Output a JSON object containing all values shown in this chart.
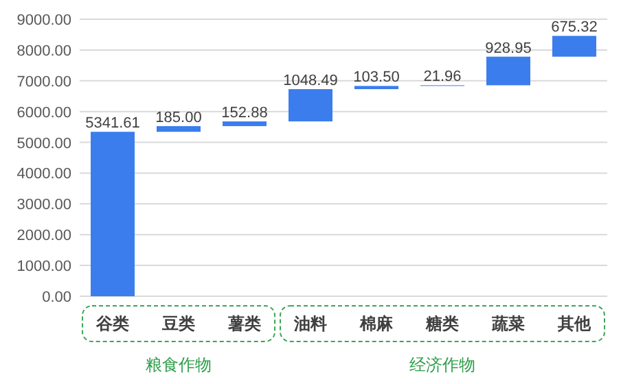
{
  "chart_data": {
    "type": "bar",
    "categories": [
      "谷类",
      "豆类",
      "薯类",
      "油料",
      "棉麻",
      "糖类",
      "蔬菜",
      "其他"
    ],
    "values": [
      5341.61,
      185.0,
      152.88,
      1048.49,
      103.5,
      21.96,
      928.95,
      675.32
    ],
    "base": [
      0,
      5341.61,
      5526.61,
      5679.49,
      6727.98,
      6831.48,
      6853.44,
      7782.39
    ],
    "value_labels": [
      "5341.61",
      "185.00",
      "152.88",
      "1048.49",
      "103.50",
      "21.96",
      "928.95",
      "675.32"
    ],
    "color": "#3b7ded",
    "ylim": [
      0,
      9000
    ],
    "yticks": [
      {
        "value": 0,
        "label": "0.00"
      },
      {
        "value": 1000,
        "label": "1000.00"
      },
      {
        "value": 2000,
        "label": "2000.00"
      },
      {
        "value": 3000,
        "label": "3000.00"
      },
      {
        "value": 4000,
        "label": "4000.00"
      },
      {
        "value": 5000,
        "label": "5000.00"
      },
      {
        "value": 6000,
        "label": "6000.00"
      },
      {
        "value": 7000,
        "label": "7000.00"
      },
      {
        "value": 8000,
        "label": "8000.00"
      },
      {
        "value": 9000,
        "label": "9000.00"
      }
    ],
    "grid": "y",
    "annotations": [
      "粮食作物",
      "经济作物"
    ]
  }
}
